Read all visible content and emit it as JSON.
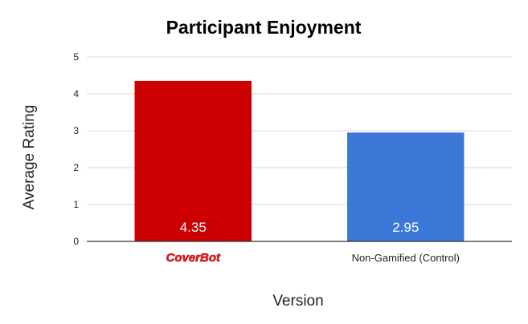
{
  "chart_data": {
    "type": "bar",
    "title": "Participant Enjoyment",
    "xlabel": "Version",
    "ylabel": "Average Rating",
    "categories": [
      "CoverBot",
      "Non-Gamified (Control)"
    ],
    "values": [
      4.35,
      2.95
    ],
    "value_labels": [
      "4.35",
      "2.95"
    ],
    "colors": [
      "#cc0000",
      "#3c78d8"
    ],
    "ylim": [
      0,
      5
    ],
    "yticks": [
      "0",
      "1",
      "2",
      "3",
      "4",
      "5"
    ],
    "grid": true,
    "legend": "none",
    "category_styles": [
      "logo",
      "text"
    ]
  }
}
